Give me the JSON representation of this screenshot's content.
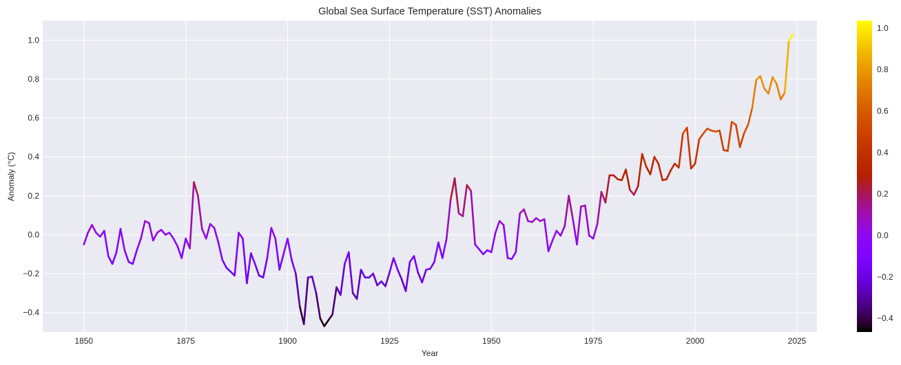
{
  "chart_data": {
    "type": "line",
    "title": "Global Sea Surface Temperature (SST) Anomalies",
    "xlabel": "Year",
    "ylabel": "Anomaly (°C)",
    "xlim": [
      1839.9,
      2029.9
    ],
    "ylim": [
      -0.5,
      1.1
    ],
    "grid": true,
    "legend": "none",
    "colormap": "gnuplot",
    "color_by": "y",
    "background_color": "#eaeaf2",
    "x_ticks": [
      1850,
      1875,
      1900,
      1925,
      1950,
      1975,
      2000,
      2025
    ],
    "x_tick_labels": [
      "1850",
      "1875",
      "1900",
      "1925",
      "1950",
      "1975",
      "2000",
      "2025"
    ],
    "y_ticks": [
      -0.4,
      -0.2,
      0.0,
      0.2,
      0.4,
      0.6,
      0.8,
      1.0
    ],
    "y_tick_labels": [
      "−0.4",
      "−0.2",
      "0.0",
      "0.2",
      "0.4",
      "0.6",
      "0.8",
      "1.0"
    ],
    "colorbar": {
      "range": [
        -0.466,
        1.036
      ],
      "ticks": [
        -0.4,
        -0.2,
        0.0,
        0.2,
        0.4,
        0.6,
        0.8,
        1.0
      ],
      "tick_labels": [
        "−0.4",
        "−0.2",
        "0.0",
        "0.2",
        "0.4",
        "0.6",
        "0.8",
        "1.0"
      ],
      "placement": "right"
    },
    "x_start": 1850,
    "values": [
      -0.05,
      0.01,
      0.05,
      0.01,
      -0.01,
      0.02,
      -0.11,
      -0.15,
      -0.09,
      0.03,
      -0.08,
      -0.14,
      -0.15,
      -0.08,
      -0.02,
      0.07,
      0.06,
      -0.03,
      0.01,
      0.025,
      0.0,
      0.01,
      -0.02,
      -0.06,
      -0.12,
      -0.02,
      -0.07,
      0.27,
      0.2,
      0.03,
      -0.02,
      0.055,
      0.035,
      -0.04,
      -0.13,
      -0.17,
      -0.19,
      -0.21,
      0.01,
      -0.02,
      -0.25,
      -0.095,
      -0.15,
      -0.21,
      -0.22,
      -0.12,
      0.035,
      -0.02,
      -0.18,
      -0.1,
      -0.02,
      -0.13,
      -0.2,
      -0.37,
      -0.46,
      -0.22,
      -0.215,
      -0.3,
      -0.43,
      -0.47,
      -0.44,
      -0.41,
      -0.27,
      -0.31,
      -0.15,
      -0.09,
      -0.3,
      -0.33,
      -0.18,
      -0.22,
      -0.22,
      -0.2,
      -0.26,
      -0.24,
      -0.265,
      -0.195,
      -0.12,
      -0.18,
      -0.23,
      -0.29,
      -0.14,
      -0.11,
      -0.195,
      -0.245,
      -0.18,
      -0.175,
      -0.14,
      -0.04,
      -0.12,
      -0.02,
      0.18,
      0.29,
      0.11,
      0.095,
      0.255,
      0.225,
      -0.05,
      -0.075,
      -0.1,
      -0.08,
      -0.09,
      0.01,
      0.07,
      0.05,
      -0.12,
      -0.125,
      -0.09,
      0.11,
      0.13,
      0.07,
      0.065,
      0.085,
      0.07,
      0.08,
      -0.085,
      -0.03,
      0.02,
      -0.005,
      0.045,
      0.2,
      0.08,
      -0.05,
      0.145,
      0.15,
      -0.005,
      -0.02,
      0.055,
      0.22,
      0.165,
      0.305,
      0.305,
      0.285,
      0.28,
      0.335,
      0.23,
      0.205,
      0.25,
      0.415,
      0.35,
      0.31,
      0.4,
      0.365,
      0.28,
      0.285,
      0.33,
      0.365,
      0.345,
      0.52,
      0.55,
      0.34,
      0.365,
      0.49,
      0.52,
      0.545,
      0.535,
      0.53,
      0.535,
      0.435,
      0.43,
      0.58,
      0.565,
      0.45,
      0.52,
      0.565,
      0.65,
      0.795,
      0.815,
      0.75,
      0.725,
      0.81,
      0.775,
      0.695,
      0.73,
      0.995,
      1.03
    ]
  }
}
